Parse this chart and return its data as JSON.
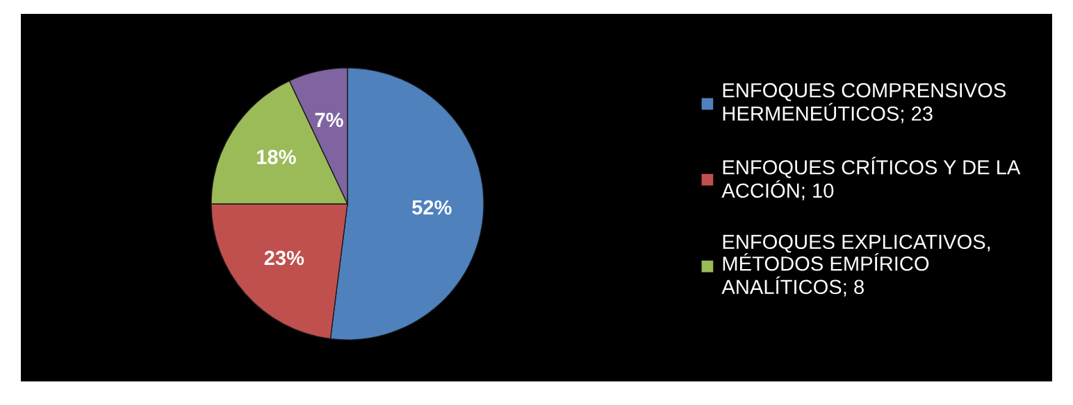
{
  "chart_data": {
    "type": "pie",
    "categories": [
      "ENFOQUES COMPRENSIVOS\nHERMENEÚTICOS; 23",
      "ENFOQUES CRÍTICOS Y DE LA\nACCIÓN; 10",
      "ENFOQUES EXPLICATIVOS,\nMÉTODOS EMPÍRICO\nANALÍTICOS; 8",
      null
    ],
    "values": [
      52,
      23,
      18,
      7
    ],
    "colors": [
      "#4f81bd",
      "#c0504d",
      "#9bbb59",
      "#8064a2"
    ],
    "value_labels": [
      "52%",
      "23%",
      "18%",
      "7%"
    ],
    "legend": "right"
  }
}
